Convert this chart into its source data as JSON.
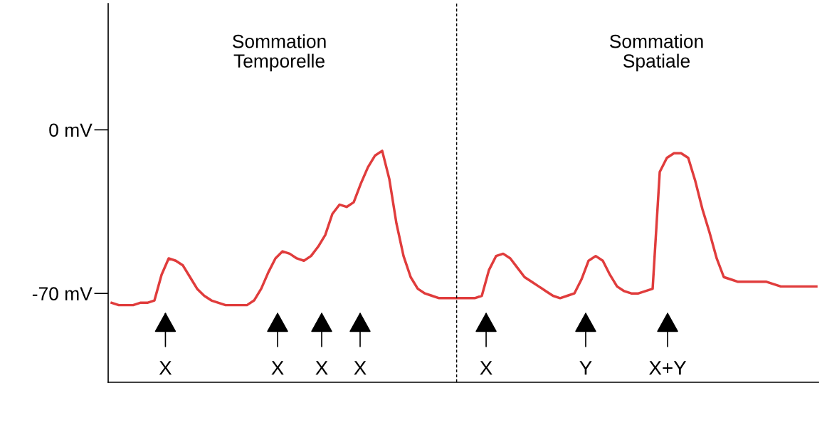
{
  "chart_data": {
    "type": "line",
    "categories": [
      null,
      null,
      null,
      null,
      null,
      null,
      null,
      null,
      null,
      null,
      null,
      null,
      null,
      null,
      null,
      null,
      null,
      null,
      null,
      null,
      null,
      null,
      null,
      null,
      null,
      null,
      null,
      null,
      null,
      null,
      null,
      null,
      null,
      null,
      null,
      null,
      null,
      null,
      null,
      null,
      null,
      null,
      null,
      null,
      null,
      null,
      null,
      null,
      null,
      null,
      null,
      null,
      null,
      null,
      null,
      null,
      null,
      null,
      null,
      null,
      null,
      null,
      null,
      null,
      null,
      null,
      null,
      null,
      null,
      null,
      null,
      null,
      null,
      null,
      null,
      null,
      null,
      null,
      null,
      null,
      null,
      null,
      null,
      null,
      null,
      null,
      null,
      null,
      null,
      null,
      null,
      null,
      null,
      null,
      null,
      null,
      null,
      null,
      null,
      null
    ],
    "series": [
      {
        "color": "#e03c3c",
        "values": [
          -74,
          -75,
          -75,
          -75,
          -74,
          -74,
          -73,
          -62,
          -55,
          -56,
          -58,
          -63,
          -68,
          -71,
          -73,
          -74,
          -75,
          -75,
          -75,
          -75,
          -73,
          -68,
          -61,
          -55,
          -52,
          -53,
          -55,
          -56,
          -54,
          -50,
          -45,
          -36,
          -32,
          -33,
          -31,
          -23,
          -16,
          -11,
          -9,
          -21,
          -40,
          -54,
          -63,
          -68,
          -70,
          -71,
          -72,
          -72,
          -72,
          -72,
          -72,
          -72,
          -71,
          -60,
          -54,
          -53,
          -55,
          -59,
          -63,
          -65,
          -67,
          -69,
          -71,
          -72,
          -71,
          -70,
          -64,
          -56,
          -54,
          -56,
          -62,
          -67,
          -69,
          -70,
          -70,
          -69,
          -68,
          -18,
          -12,
          -10,
          -10,
          -12,
          -22,
          -34,
          -44,
          -55,
          -63,
          -64,
          -65,
          -65,
          -65,
          -65,
          -65,
          -66,
          -67,
          -67,
          -67,
          -67,
          -67,
          -67
        ]
      }
    ],
    "ylim": [
      -108,
      54
    ],
    "yticks": [
      {
        "value": 0,
        "label": "0 mV"
      },
      {
        "value": -70,
        "label": "-70 mV"
      }
    ],
    "tick_labels": "y",
    "line_style": "solid",
    "annotations": [
      "Sommation\nTemporelle",
      "Sommation\nSpatiale",
      "X",
      "X",
      "X",
      "X",
      "X",
      "Y",
      "X+Y"
    ]
  }
}
